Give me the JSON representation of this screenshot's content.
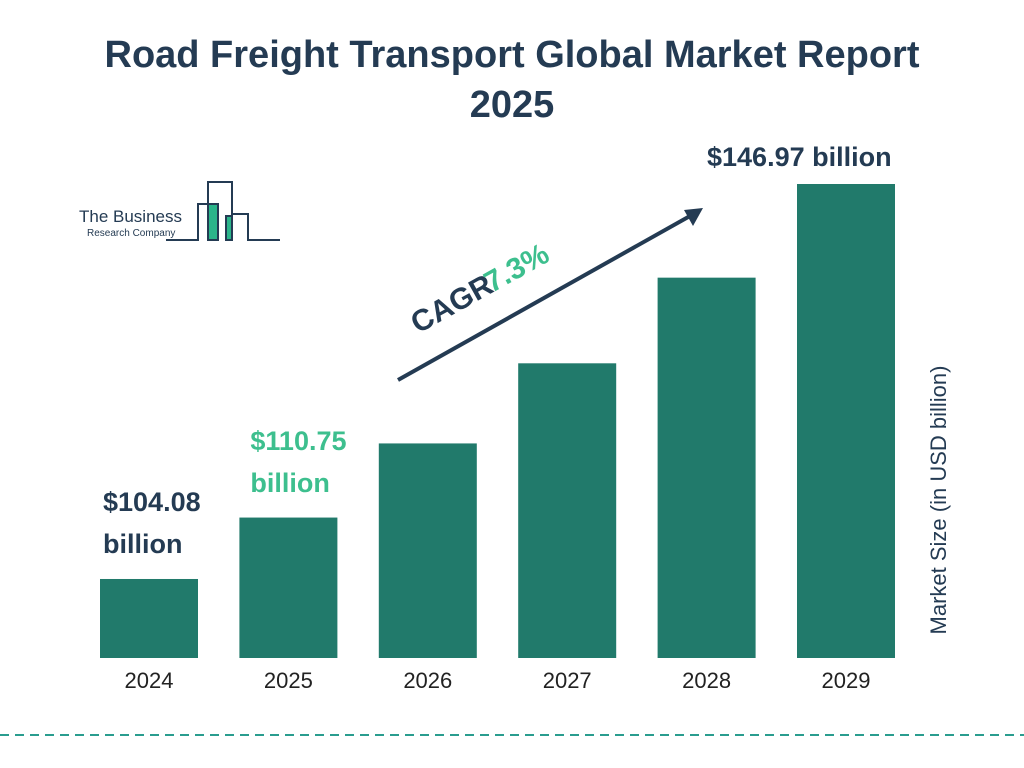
{
  "chart_data": {
    "type": "bar",
    "title": "Road Freight Transport Global Market Report 2025",
    "categories": [
      "2024",
      "2025",
      "2026",
      "2027",
      "2028",
      "2029"
    ],
    "values": [
      104.08,
      110.75,
      118.8,
      127.5,
      136.8,
      146.97
    ],
    "value_labels": [
      "$104.08 billion",
      "$110.75 billion",
      null,
      null,
      null,
      "$146.97 billion"
    ],
    "color": "#217a6b",
    "ylim": [
      95.5,
      146.97
    ],
    "y_axis_label": "Market Size (in USD billion)",
    "annotations": {
      "cagr_label": "CAGR",
      "cagr_value": "7.3%"
    },
    "logo": {
      "line1": "The Business",
      "line2": "Research Company"
    }
  }
}
